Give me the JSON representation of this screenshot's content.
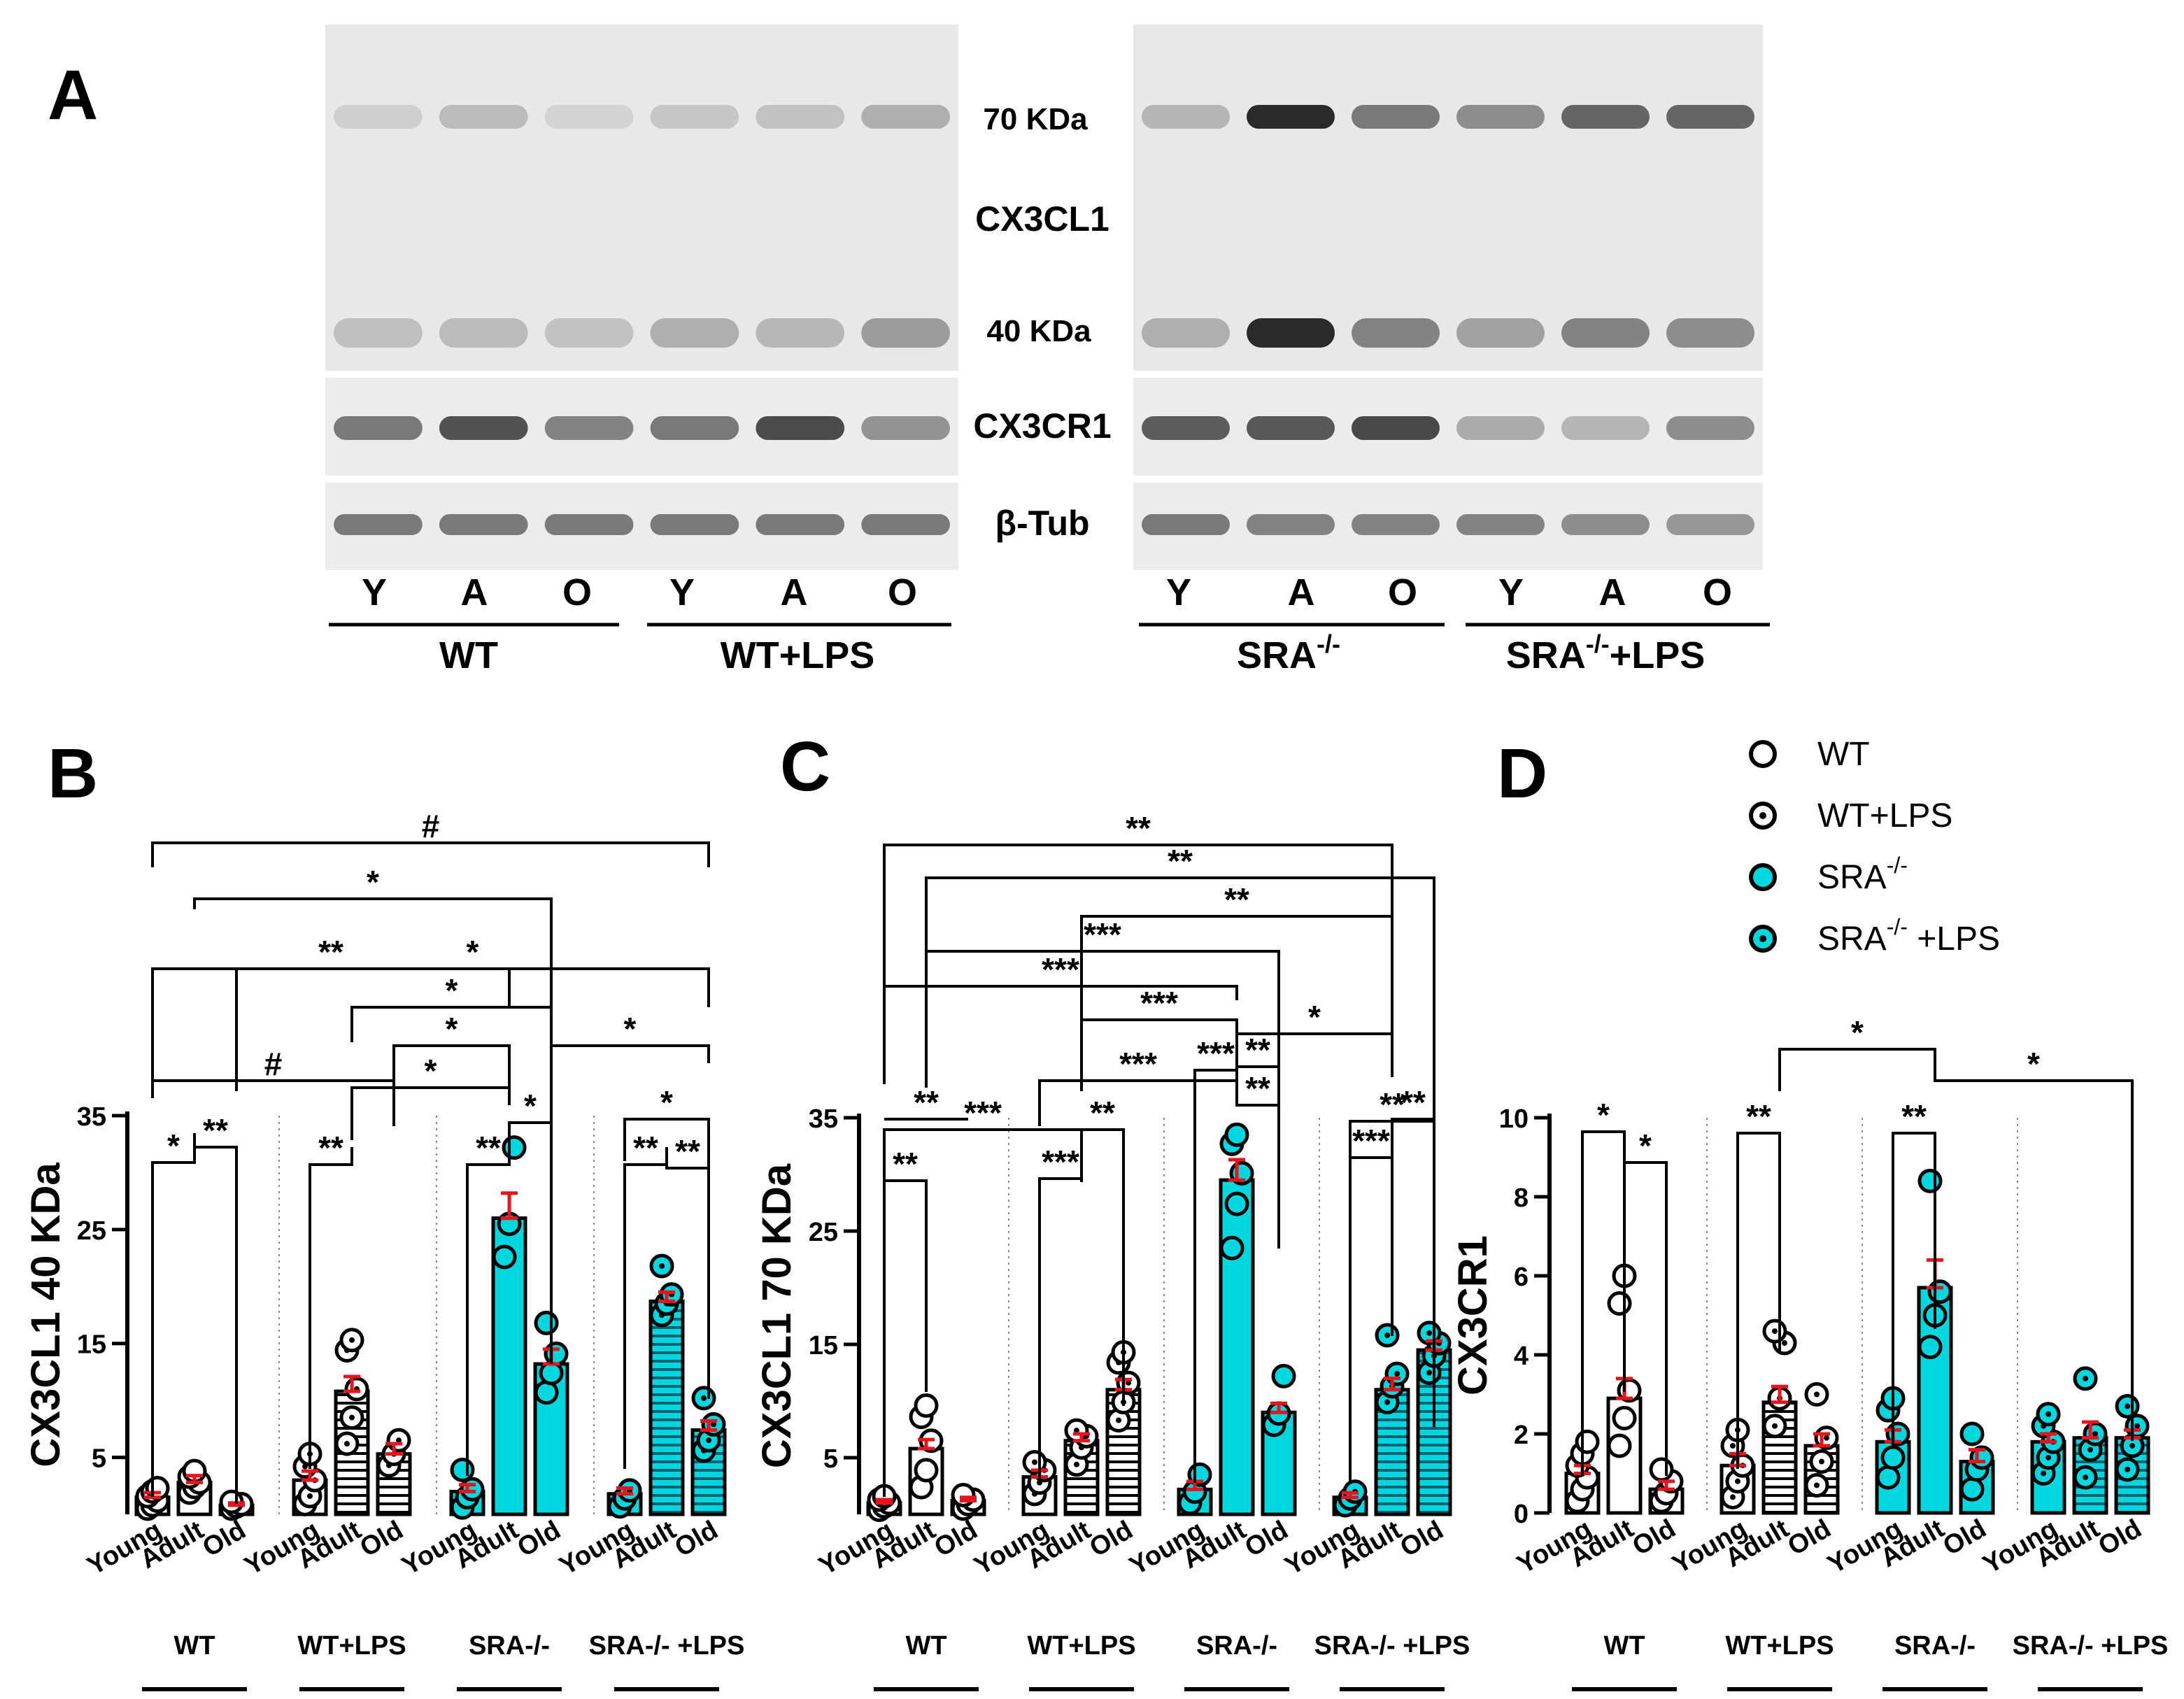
{
  "panels": {
    "a": "A",
    "b": "B",
    "c": "C",
    "d": "D"
  },
  "blot": {
    "marker_70": "70 KDa",
    "cx3cl1": "CX3CL1",
    "marker_40": "40 KDa",
    "cx3cr1": "CX3CR1",
    "tub": "β-Tub",
    "lanes": [
      "Y",
      "A",
      "O",
      "Y",
      "A",
      "O"
    ],
    "left_groups": [
      "WT",
      "WT+LPS"
    ],
    "right_groups": [
      "SRA",
      "-/-",
      "SRA",
      "-/-",
      "+LPS"
    ],
    "left_band_intensity": {
      "band70": [
        0.12,
        0.22,
        0.1,
        0.16,
        0.18,
        0.28
      ],
      "band40": [
        0.2,
        0.22,
        0.18,
        0.28,
        0.24,
        0.38
      ],
      "cx3cr1": [
        0.55,
        0.75,
        0.5,
        0.55,
        0.78,
        0.42
      ],
      "tub": [
        0.55,
        0.55,
        0.55,
        0.55,
        0.55,
        0.55
      ]
    },
    "right_band_intensity": {
      "band70": [
        0.25,
        0.95,
        0.55,
        0.45,
        0.65,
        0.65
      ],
      "band40": [
        0.28,
        0.95,
        0.5,
        0.35,
        0.5,
        0.45
      ],
      "cx3cr1": [
        0.7,
        0.72,
        0.8,
        0.3,
        0.25,
        0.45
      ],
      "tub": [
        0.55,
        0.5,
        0.5,
        0.5,
        0.45,
        0.4
      ]
    }
  },
  "legend": {
    "items": [
      {
        "label": "WT",
        "fill": "#ffffff",
        "dot": false
      },
      {
        "label": "WT+LPS",
        "fill": "#ffffff",
        "dot": true
      },
      {
        "label": "SRA",
        "sup": "-/-",
        "after": "",
        "fill": "#00d8e0",
        "dot": false
      },
      {
        "label": "SRA",
        "sup": "-/-",
        "after": " +LPS",
        "fill": "#00d8e0",
        "dot": true
      }
    ]
  },
  "colors": {
    "cyan": "#00d8e0",
    "error": "#e8141b",
    "black": "#000000"
  },
  "chart_data": [
    {
      "panel": "B",
      "type": "bar",
      "ylabel": "CX3CL1 40 KDa",
      "yticks": [
        5,
        15,
        25,
        35
      ],
      "ylim": [
        0,
        35
      ],
      "categories": [
        "Young",
        "Adult",
        "Old"
      ],
      "groups": [
        {
          "label": "WT",
          "values": [
            1.5,
            2.8,
            0.8
          ],
          "errors": [
            0.4,
            0.6,
            0.2
          ]
        },
        {
          "label": "WT+LPS",
          "values": [
            3.0,
            10.8,
            5.3
          ],
          "errors": [
            0.8,
            1.3,
            0.9
          ]
        },
        {
          "label": "SRA-/-",
          "values": [
            2.0,
            26.0,
            13.2
          ],
          "errors": [
            0.6,
            2.2,
            1.3
          ]
        },
        {
          "label": "SRA-/- +LPS",
          "values": [
            1.8,
            18.7,
            7.4
          ],
          "errors": [
            0.5,
            0.8,
            0.8
          ]
        }
      ],
      "points": [
        [
          [
            0.5,
            0.8,
            1.2,
            1.6,
            2.0,
            2.3
          ],
          [
            1.9,
            2.4,
            2.8,
            3.3,
            3.8
          ],
          [
            0.5,
            0.7,
            0.9,
            1.1
          ]
        ],
        [
          [
            0.9,
            1.6,
            3.0,
            4.2,
            5.3
          ],
          [
            6.2,
            8.5,
            11.0,
            14.4,
            15.3
          ],
          [
            4.3,
            5.3,
            6.5
          ]
        ],
        [
          [
            0.6,
            1.5,
            2.2,
            3.9
          ],
          [
            22.6,
            25.5,
            32.2
          ],
          [
            10.7,
            12.4,
            14.1,
            16.8
          ]
        ],
        [
          [
            0.7,
            1.4,
            2.1
          ],
          [
            17.5,
            18.5,
            19.3,
            21.8
          ],
          [
            5.6,
            6.5,
            7.9,
            10.2
          ]
        ]
      ],
      "significance": [
        "*",
        "**",
        "**",
        "**",
        "**",
        "**",
        "*",
        "*",
        "*",
        "*",
        "*",
        "*",
        "*",
        "**",
        "*",
        "#",
        "#"
      ]
    },
    {
      "panel": "C",
      "type": "bar",
      "ylabel": "CX3CL1 70 KDa",
      "yticks": [
        5,
        15,
        25,
        35
      ],
      "ylim": [
        0,
        35
      ],
      "categories": [
        "Young",
        "Adult",
        "Old"
      ],
      "groups": [
        {
          "label": "WT",
          "values": [
            1.0,
            5.8,
            1.2
          ],
          "errors": [
            0.3,
            0.8,
            0.3
          ]
        },
        {
          "label": "WT+LPS",
          "values": [
            3.3,
            6.5,
            11.0
          ],
          "errors": [
            0.6,
            0.6,
            0.9
          ]
        },
        {
          "label": "SRA-/-",
          "values": [
            2.2,
            29.5,
            9.0
          ],
          "errors": [
            0.7,
            1.8,
            0.8
          ]
        },
        {
          "label": "SRA-/- +LPS",
          "values": [
            1.5,
            11.0,
            14.5
          ],
          "errors": [
            0.4,
            1.0,
            0.8
          ]
        }
      ],
      "points": [
        [
          [
            0.4,
            0.7,
            1.0,
            1.3,
            1.6
          ],
          [
            2.4,
            3.9,
            6.5,
            8.6,
            9.6
          ],
          [
            0.5,
            0.9,
            1.3,
            1.7
          ]
        ],
        [
          [
            1.8,
            2.8,
            3.9,
            4.6
          ],
          [
            4.4,
            5.9,
            6.9,
            7.4
          ],
          [
            8.3,
            9.9,
            11.6,
            13.4,
            14.3
          ]
        ],
        [
          [
            1.0,
            2.0,
            3.5
          ],
          [
            23.5,
            27.4,
            30.1,
            32.7,
            33.5
          ],
          [
            7.9,
            8.9,
            12.2
          ]
        ],
        [
          [
            0.8,
            1.4,
            2.0
          ],
          [
            9.9,
            11.3,
            12.4,
            15.8
          ],
          [
            12.5,
            14.0,
            15.1,
            16.0
          ]
        ]
      ],
      "significance": [
        "**",
        "***",
        "**",
        "***",
        "***",
        "***",
        "*",
        "**",
        "***",
        "**",
        "***",
        "***",
        "**",
        "***",
        "**",
        "**",
        "**",
        "**",
        "**"
      ]
    },
    {
      "panel": "D",
      "type": "bar",
      "ylabel": "CX3CR1",
      "yticks": [
        0,
        2,
        4,
        6,
        8,
        10
      ],
      "ylim": [
        0,
        10
      ],
      "categories": [
        "Young",
        "Adult",
        "Old"
      ],
      "groups": [
        {
          "label": "WT",
          "values": [
            1.0,
            2.9,
            0.6
          ],
          "errors": [
            0.2,
            0.5,
            0.2
          ]
        },
        {
          "label": "WT+LPS",
          "values": [
            1.2,
            2.8,
            1.7
          ],
          "errors": [
            0.3,
            0.4,
            0.3
          ]
        },
        {
          "label": "SRA-/-",
          "values": [
            1.8,
            5.7,
            1.3
          ],
          "errors": [
            0.3,
            0.7,
            0.3
          ]
        },
        {
          "label": "SRA-/- +LPS",
          "values": [
            1.8,
            1.9,
            1.9
          ],
          "errors": [
            0.2,
            0.4,
            0.2
          ]
        }
      ],
      "points": [
        [
          [
            0.3,
            0.6,
            0.9,
            1.2,
            1.5,
            1.8
          ],
          [
            1.7,
            2.4,
            3.1,
            5.3,
            6.0
          ],
          [
            0.3,
            0.5,
            0.8,
            1.1
          ]
        ],
        [
          [
            0.4,
            0.8,
            1.2,
            1.7,
            2.1
          ],
          [
            2.2,
            2.9,
            4.3,
            4.6
          ],
          [
            0.7,
            1.3,
            1.9,
            3.0
          ]
        ],
        [
          [
            0.9,
            1.4,
            2.0,
            2.6,
            2.9
          ],
          [
            4.2,
            5.0,
            5.6,
            8.4
          ],
          [
            0.6,
            1.1,
            1.4,
            2.0
          ]
        ],
        [
          [
            1.0,
            1.4,
            1.8,
            2.2,
            2.5
          ],
          [
            0.9,
            1.6,
            2.0,
            3.4
          ],
          [
            1.1,
            1.7,
            2.2,
            2.7
          ]
        ]
      ],
      "significance": [
        "*",
        "*",
        "**",
        "**",
        "*",
        "*"
      ]
    }
  ]
}
